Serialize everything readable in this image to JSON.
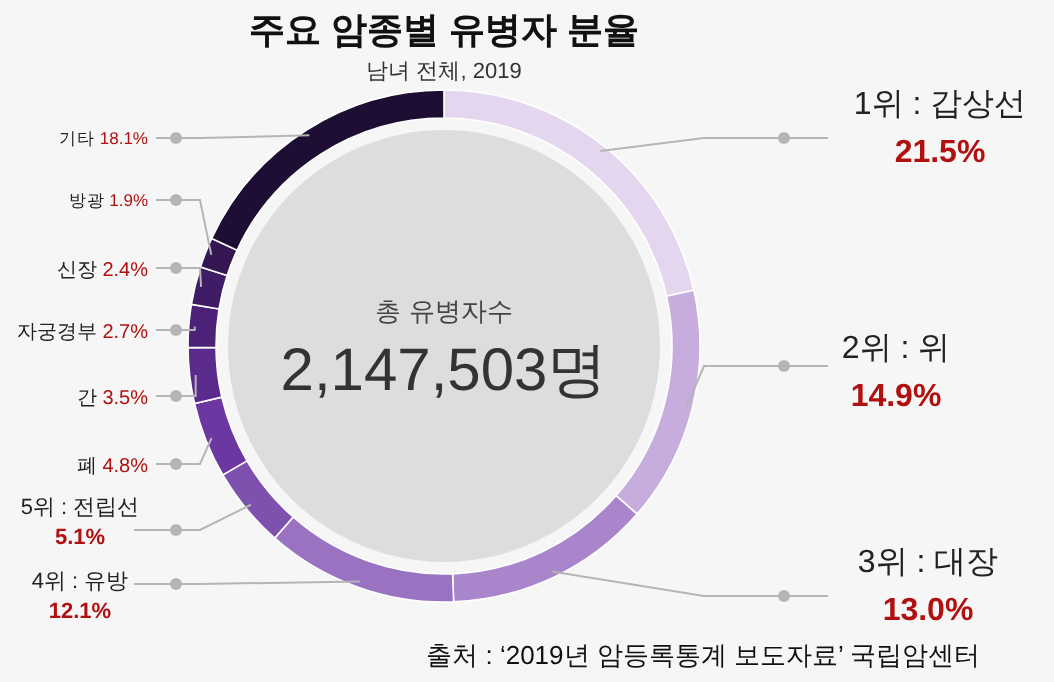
{
  "chart_data": {
    "type": "donut",
    "title": "주요 암종별 유병자 분율",
    "subtitle": "남녀 전체, 2019",
    "categories": [
      "1위 : 갑상선",
      "2위 : 위",
      "3위 : 대장",
      "4위 : 유방",
      "5위 : 전립선",
      "폐",
      "간",
      "자궁경부",
      "신장",
      "방광",
      "기타"
    ],
    "values": [
      21.5,
      14.9,
      13.0,
      12.1,
      5.1,
      4.8,
      3.5,
      2.7,
      2.4,
      1.9,
      18.1
    ],
    "value_labels": [
      "21.5%",
      "14.9%",
      "13.0%",
      "12.1%",
      "5.1%",
      "4.8%",
      "3.5%",
      "2.7%",
      "2.4%",
      "1.9%",
      "18.1%"
    ],
    "colors": [
      "#e4d6ee",
      "#c6addd",
      "#a986cc",
      "#9a72c2",
      "#7f51ae",
      "#6c37a1",
      "#5a2a8c",
      "#4b2278",
      "#3f1c66",
      "#331652",
      "#1f0e33"
    ],
    "annotations": [
      "총 유병자수",
      "2,147,503명",
      "출처 : ‘2019년 암등록통계 보도자료’ 국립암센터"
    ]
  }
}
